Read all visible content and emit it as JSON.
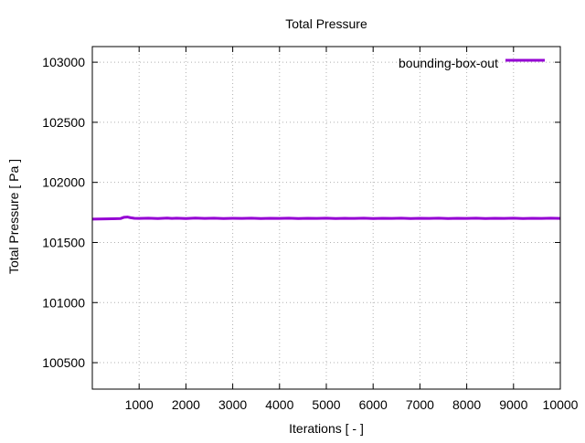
{
  "chart_data": {
    "type": "line",
    "title": "Total Pressure",
    "xlabel": "Iterations [ - ]",
    "ylabel": "Total Pressure [ Pa ]",
    "xlim": [
      0,
      10000
    ],
    "ylim": [
      100280,
      103130
    ],
    "xticks": [
      1000,
      2000,
      3000,
      4000,
      5000,
      6000,
      7000,
      8000,
      9000,
      10000
    ],
    "yticks": [
      100500,
      101000,
      101500,
      102000,
      102500,
      103000
    ],
    "grid": true,
    "legend_position": "top-right",
    "series": [
      {
        "name": "bounding-box-out",
        "color": "#9400d3",
        "x": [
          0,
          300,
          600,
          680,
          750,
          820,
          900,
          1000,
          1200,
          1400,
          1600,
          1700,
          1800,
          2000,
          2200,
          2400,
          2600,
          2800,
          3000,
          3200,
          3400,
          3600,
          3800,
          4000,
          4200,
          4400,
          4600,
          4800,
          5000,
          5200,
          5400,
          5600,
          5800,
          6000,
          6200,
          6400,
          6600,
          6800,
          7000,
          7200,
          7400,
          7600,
          7800,
          8000,
          8200,
          8400,
          8600,
          8800,
          9000,
          9200,
          9400,
          9600,
          9800,
          10000
        ],
        "y": [
          101695,
          101696,
          101699,
          101710,
          101712,
          101706,
          101701,
          101700,
          101702,
          101699,
          101703,
          101700,
          101702,
          101699,
          101703,
          101700,
          101702,
          101699,
          101701,
          101700,
          101702,
          101699,
          101701,
          101700,
          101702,
          101699,
          101701,
          101700,
          101702,
          101699,
          101701,
          101700,
          101702,
          101699,
          101701,
          101700,
          101702,
          101699,
          101701,
          101700,
          101702,
          101699,
          101701,
          101700,
          101702,
          101699,
          101701,
          101700,
          101702,
          101699,
          101701,
          101700,
          101702,
          101700
        ]
      }
    ]
  }
}
